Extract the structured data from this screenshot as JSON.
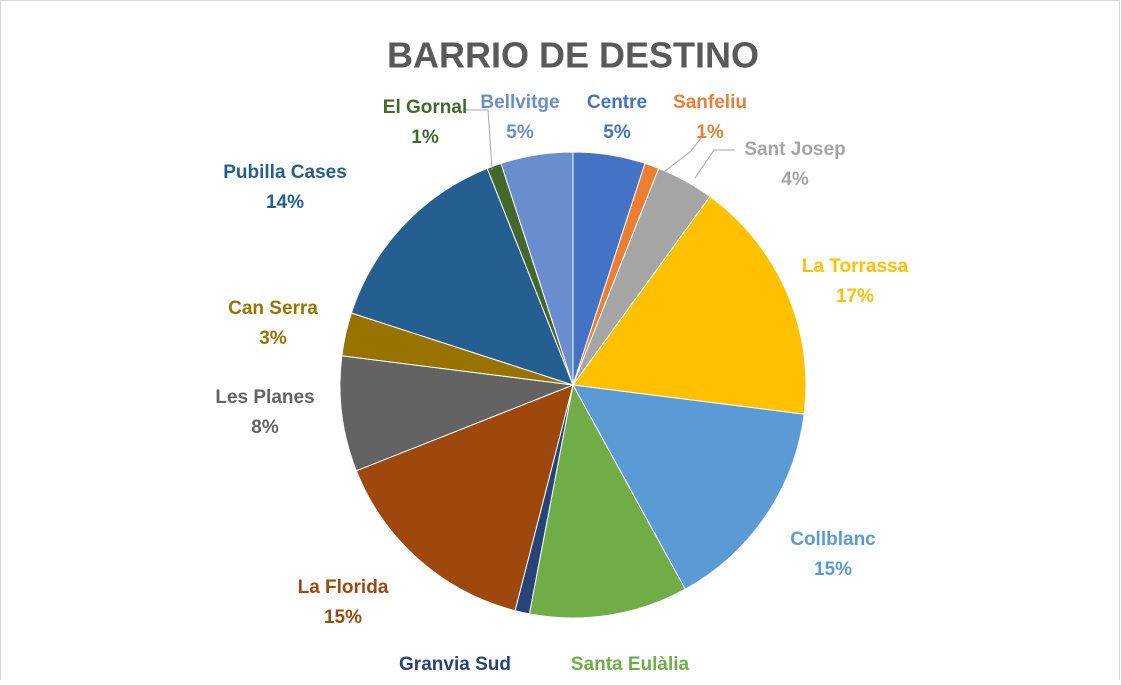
{
  "chart_data": {
    "type": "pie",
    "title": "BARRIO DE DESTINO",
    "categories": [
      "Centre",
      "Sanfeliu",
      "Sant Josep",
      "La Torrassa",
      "Collblanc",
      "Santa Eulàlia",
      "Granvia Sud",
      "La Florida",
      "Les Planes",
      "Can Serra",
      "Pubilla Cases",
      "El Gornal",
      "Bellvitge"
    ],
    "values": [
      5,
      1,
      4,
      17,
      15,
      11,
      1,
      15,
      8,
      3,
      14,
      1,
      5
    ],
    "value_labels": [
      "5%",
      "1%",
      "4%",
      "17%",
      "15%",
      "11%",
      "1%",
      "15%",
      "8%",
      "3%",
      "14%",
      "1%",
      "5%"
    ],
    "colors": [
      "#4472c4",
      "#ed7d31",
      "#a5a5a5",
      "#ffc000",
      "#5b9bd5",
      "#70ad47",
      "#264478",
      "#9e480e",
      "#636363",
      "#997300",
      "#255e91",
      "#43682b",
      "#698ed0"
    ]
  }
}
